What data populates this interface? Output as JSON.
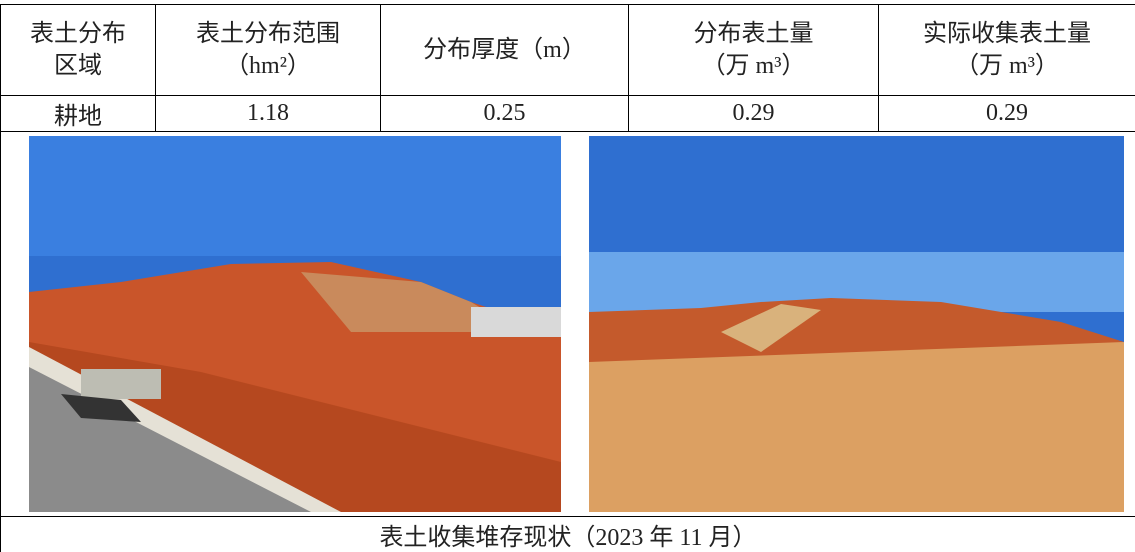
{
  "table": {
    "header": [
      [
        "表土分布",
        "区域"
      ],
      [
        "表土分布范围",
        "（hm²）"
      ],
      [
        "分布厚度（m）"
      ],
      [
        "分布表土量",
        "（万 m³）"
      ],
      [
        "实际收集表土量",
        "（万 m³）"
      ]
    ],
    "rows": [
      [
        "耕地",
        "1.18",
        "0.25",
        "0.29",
        "0.29"
      ]
    ],
    "caption": "表土收集堆存现状（2023 年 11 月）"
  }
}
